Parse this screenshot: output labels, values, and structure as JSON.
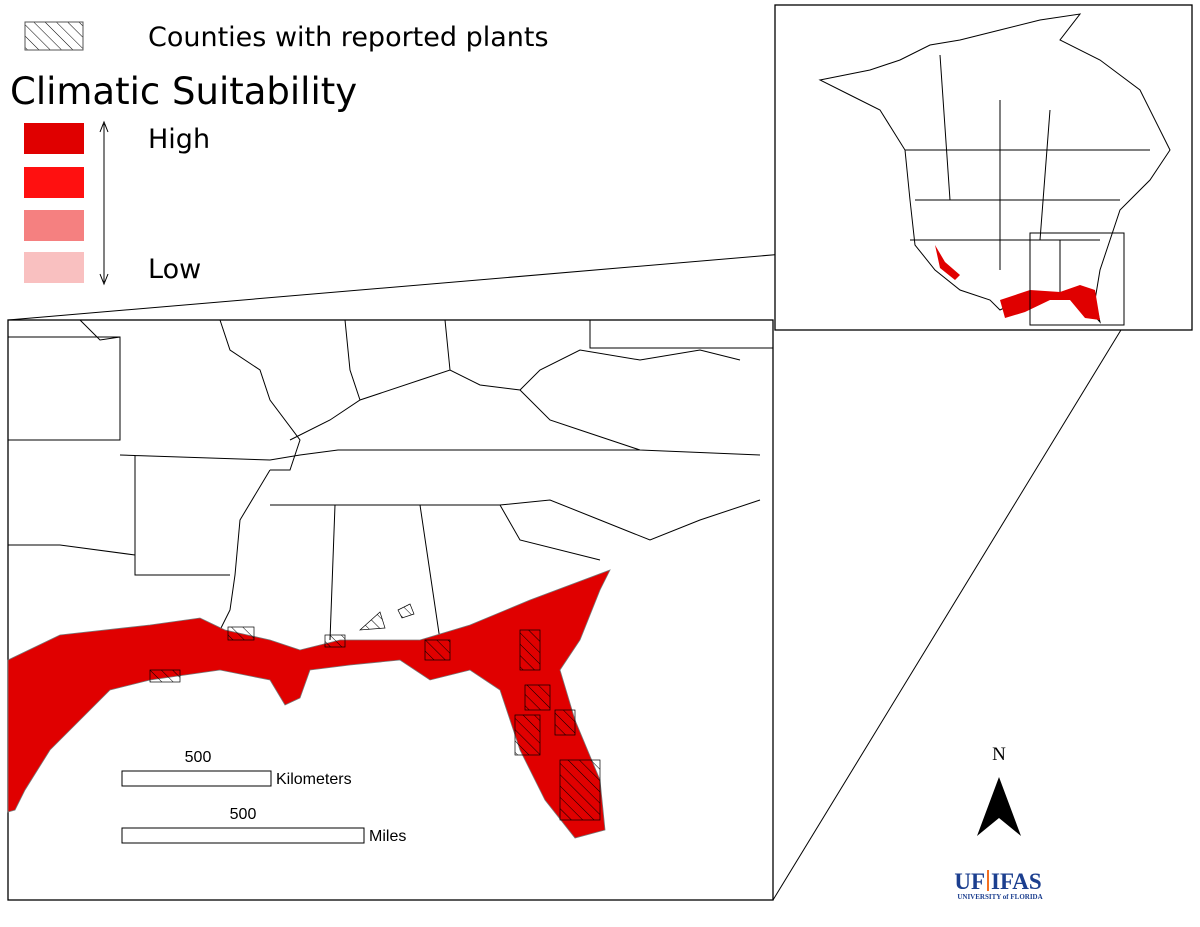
{
  "legend": {
    "hatch_label": "Counties with reported plants",
    "title": "Climatic Suitability",
    "high_label": "High",
    "low_label": "Low"
  },
  "scale_bar": {
    "kilometers": {
      "value": 500,
      "unit": "Kilometers"
    },
    "miles": {
      "value": 500,
      "unit": "Miles"
    }
  },
  "north_arrow": {
    "label": "N"
  },
  "logo": {
    "left": "UF",
    "right": "IFAS",
    "subtitle": "UNIVERSITY of FLORIDA"
  }
}
